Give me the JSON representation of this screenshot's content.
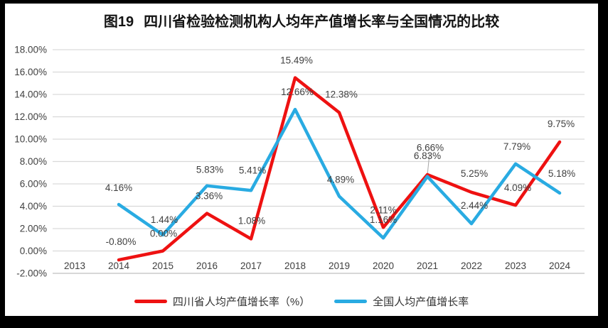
{
  "header": {
    "figure_label": "图19",
    "title": "四川省检验检测机构人均年产值增长率与全国情况的比较"
  },
  "chart_data": {
    "type": "line",
    "title": "图19 四川省检验检测机构人均年产值增长率与全国情况的比较",
    "categories": [
      "2013",
      "2014",
      "2015",
      "2016",
      "2017",
      "2018",
      "2019",
      "2020",
      "2021",
      "2022",
      "2023",
      "2024"
    ],
    "series": [
      {
        "name": "四川省人均产值增长率（%）",
        "color": "#ee1111",
        "values": [
          null,
          -0.8,
          0.0,
          3.36,
          1.08,
          15.49,
          12.38,
          2.11,
          6.83,
          5.25,
          4.09,
          9.75
        ],
        "labels": [
          null,
          "-0.80%",
          "0.00%",
          "3.36%",
          "1.08%",
          "15.49%",
          "12.38%",
          "2.11%",
          "6.83%",
          "5.25%",
          "4.09%",
          "9.75%"
        ]
      },
      {
        "name": "全国人均产值增长率",
        "color": "#29abe2",
        "values": [
          null,
          4.16,
          1.44,
          5.83,
          5.41,
          12.66,
          4.89,
          1.16,
          6.66,
          2.44,
          7.79,
          5.18
        ],
        "labels": [
          null,
          "4.16%",
          "1.44%",
          "5.83%",
          "5.41%",
          "12.66%",
          "4.89%",
          "1.16%",
          "6.66%",
          "2.44%",
          "7.79%",
          "5.18%"
        ]
      }
    ],
    "yticks": [
      "18.00%",
      "16.00%",
      "14.00%",
      "12.00%",
      "10.00%",
      "8.00%",
      "6.00%",
      "4.00%",
      "2.00%",
      "0.00%",
      "-2.00%"
    ],
    "ylim": [
      -2,
      18
    ],
    "ytick_step": 2,
    "grid": true,
    "legend_position": "bottom",
    "colors": {
      "gridline": "#d9d9d9",
      "axis_line": "#bfbfbf",
      "tick_text": "#404040",
      "label_text": "#404040",
      "leader_line": "#a6a6a6",
      "background": "#ffffff",
      "frame": "#000000"
    }
  }
}
